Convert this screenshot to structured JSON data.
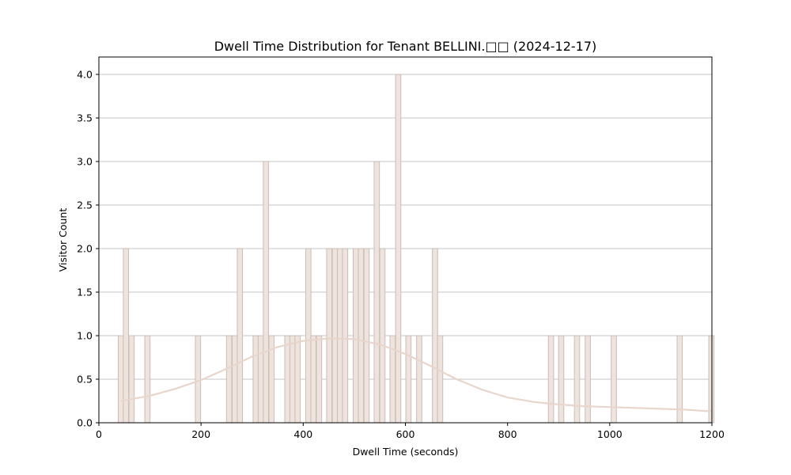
{
  "chart_data": {
    "type": "bar",
    "title": "Dwell Time Distribution for Tenant BELLINI.□□ (2024-12-17)",
    "xlabel": "Dwell Time (seconds)",
    "ylabel": "Visitor Count",
    "xlim": [
      0,
      1200
    ],
    "ylim": [
      0,
      4.2
    ],
    "xticks": [
      "0",
      "200",
      "400",
      "600",
      "800",
      "1000",
      "1200"
    ],
    "yticks": [
      "0.0",
      "0.5",
      "1.0",
      "1.5",
      "2.0",
      "2.5",
      "3.0",
      "3.5",
      "4.0"
    ],
    "grid": "horizontal",
    "bin_width": 10.3,
    "bar_color": "#efe3de",
    "bar_edge_color": "#c9bdb8",
    "kde_color": "#e8d6cc",
    "bins": [
      {
        "x": 43,
        "count": 1
      },
      {
        "x": 53,
        "count": 2
      },
      {
        "x": 64,
        "count": 1
      },
      {
        "x": 95,
        "count": 1
      },
      {
        "x": 194,
        "count": 1
      },
      {
        "x": 255,
        "count": 1
      },
      {
        "x": 266,
        "count": 1
      },
      {
        "x": 276,
        "count": 2
      },
      {
        "x": 307,
        "count": 1
      },
      {
        "x": 317,
        "count": 1
      },
      {
        "x": 327,
        "count": 3
      },
      {
        "x": 338,
        "count": 1
      },
      {
        "x": 369,
        "count": 1
      },
      {
        "x": 379,
        "count": 1
      },
      {
        "x": 389,
        "count": 1
      },
      {
        "x": 410,
        "count": 2
      },
      {
        "x": 420,
        "count": 1
      },
      {
        "x": 431,
        "count": 1
      },
      {
        "x": 451,
        "count": 2
      },
      {
        "x": 462,
        "count": 2
      },
      {
        "x": 472,
        "count": 2
      },
      {
        "x": 482,
        "count": 2
      },
      {
        "x": 503,
        "count": 2
      },
      {
        "x": 513,
        "count": 2
      },
      {
        "x": 524,
        "count": 2
      },
      {
        "x": 544,
        "count": 3
      },
      {
        "x": 555,
        "count": 2
      },
      {
        "x": 575,
        "count": 1
      },
      {
        "x": 586,
        "count": 4
      },
      {
        "x": 606,
        "count": 1
      },
      {
        "x": 627,
        "count": 1
      },
      {
        "x": 658,
        "count": 2
      },
      {
        "x": 668,
        "count": 1
      },
      {
        "x": 885,
        "count": 1
      },
      {
        "x": 905,
        "count": 1
      },
      {
        "x": 936,
        "count": 1
      },
      {
        "x": 957,
        "count": 1
      },
      {
        "x": 1008,
        "count": 1
      },
      {
        "x": 1137,
        "count": 1
      },
      {
        "x": 1199,
        "count": 1
      }
    ],
    "kde": {
      "x": [
        43,
        100,
        150,
        200,
        250,
        300,
        350,
        400,
        450,
        500,
        550,
        600,
        650,
        700,
        750,
        800,
        850,
        900,
        950,
        1000,
        1050,
        1100,
        1150,
        1199
      ],
      "y": [
        0.25,
        0.31,
        0.39,
        0.49,
        0.62,
        0.76,
        0.87,
        0.94,
        0.97,
        0.96,
        0.9,
        0.79,
        0.65,
        0.5,
        0.38,
        0.29,
        0.24,
        0.21,
        0.19,
        0.18,
        0.17,
        0.16,
        0.15,
        0.13
      ]
    }
  }
}
